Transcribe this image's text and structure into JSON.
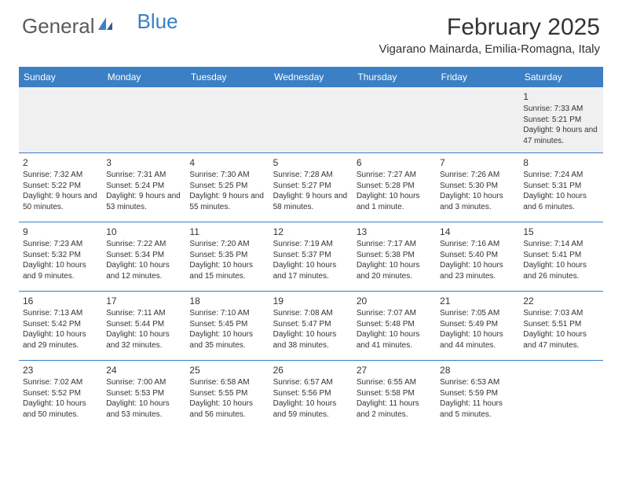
{
  "brand": {
    "part1": "General",
    "part2": "Blue"
  },
  "title": "February 2025",
  "location": "Vigarano Mainarda, Emilia-Romagna, Italy",
  "colors": {
    "header_bg": "#3b7fc4",
    "header_text": "#ffffff",
    "divider": "#3b7fc4",
    "first_row_bg": "#f0f0f0",
    "text": "#333333",
    "logo_gray": "#5a5a5a",
    "logo_blue": "#3b7fc4"
  },
  "day_headers": [
    "Sunday",
    "Monday",
    "Tuesday",
    "Wednesday",
    "Thursday",
    "Friday",
    "Saturday"
  ],
  "weeks": [
    [
      null,
      null,
      null,
      null,
      null,
      null,
      {
        "n": "1",
        "sr": "Sunrise: 7:33 AM",
        "ss": "Sunset: 5:21 PM",
        "dl": "Daylight: 9 hours and 47 minutes."
      }
    ],
    [
      {
        "n": "2",
        "sr": "Sunrise: 7:32 AM",
        "ss": "Sunset: 5:22 PM",
        "dl": "Daylight: 9 hours and 50 minutes."
      },
      {
        "n": "3",
        "sr": "Sunrise: 7:31 AM",
        "ss": "Sunset: 5:24 PM",
        "dl": "Daylight: 9 hours and 53 minutes."
      },
      {
        "n": "4",
        "sr": "Sunrise: 7:30 AM",
        "ss": "Sunset: 5:25 PM",
        "dl": "Daylight: 9 hours and 55 minutes."
      },
      {
        "n": "5",
        "sr": "Sunrise: 7:28 AM",
        "ss": "Sunset: 5:27 PM",
        "dl": "Daylight: 9 hours and 58 minutes."
      },
      {
        "n": "6",
        "sr": "Sunrise: 7:27 AM",
        "ss": "Sunset: 5:28 PM",
        "dl": "Daylight: 10 hours and 1 minute."
      },
      {
        "n": "7",
        "sr": "Sunrise: 7:26 AM",
        "ss": "Sunset: 5:30 PM",
        "dl": "Daylight: 10 hours and 3 minutes."
      },
      {
        "n": "8",
        "sr": "Sunrise: 7:24 AM",
        "ss": "Sunset: 5:31 PM",
        "dl": "Daylight: 10 hours and 6 minutes."
      }
    ],
    [
      {
        "n": "9",
        "sr": "Sunrise: 7:23 AM",
        "ss": "Sunset: 5:32 PM",
        "dl": "Daylight: 10 hours and 9 minutes."
      },
      {
        "n": "10",
        "sr": "Sunrise: 7:22 AM",
        "ss": "Sunset: 5:34 PM",
        "dl": "Daylight: 10 hours and 12 minutes."
      },
      {
        "n": "11",
        "sr": "Sunrise: 7:20 AM",
        "ss": "Sunset: 5:35 PM",
        "dl": "Daylight: 10 hours and 15 minutes."
      },
      {
        "n": "12",
        "sr": "Sunrise: 7:19 AM",
        "ss": "Sunset: 5:37 PM",
        "dl": "Daylight: 10 hours and 17 minutes."
      },
      {
        "n": "13",
        "sr": "Sunrise: 7:17 AM",
        "ss": "Sunset: 5:38 PM",
        "dl": "Daylight: 10 hours and 20 minutes."
      },
      {
        "n": "14",
        "sr": "Sunrise: 7:16 AM",
        "ss": "Sunset: 5:40 PM",
        "dl": "Daylight: 10 hours and 23 minutes."
      },
      {
        "n": "15",
        "sr": "Sunrise: 7:14 AM",
        "ss": "Sunset: 5:41 PM",
        "dl": "Daylight: 10 hours and 26 minutes."
      }
    ],
    [
      {
        "n": "16",
        "sr": "Sunrise: 7:13 AM",
        "ss": "Sunset: 5:42 PM",
        "dl": "Daylight: 10 hours and 29 minutes."
      },
      {
        "n": "17",
        "sr": "Sunrise: 7:11 AM",
        "ss": "Sunset: 5:44 PM",
        "dl": "Daylight: 10 hours and 32 minutes."
      },
      {
        "n": "18",
        "sr": "Sunrise: 7:10 AM",
        "ss": "Sunset: 5:45 PM",
        "dl": "Daylight: 10 hours and 35 minutes."
      },
      {
        "n": "19",
        "sr": "Sunrise: 7:08 AM",
        "ss": "Sunset: 5:47 PM",
        "dl": "Daylight: 10 hours and 38 minutes."
      },
      {
        "n": "20",
        "sr": "Sunrise: 7:07 AM",
        "ss": "Sunset: 5:48 PM",
        "dl": "Daylight: 10 hours and 41 minutes."
      },
      {
        "n": "21",
        "sr": "Sunrise: 7:05 AM",
        "ss": "Sunset: 5:49 PM",
        "dl": "Daylight: 10 hours and 44 minutes."
      },
      {
        "n": "22",
        "sr": "Sunrise: 7:03 AM",
        "ss": "Sunset: 5:51 PM",
        "dl": "Daylight: 10 hours and 47 minutes."
      }
    ],
    [
      {
        "n": "23",
        "sr": "Sunrise: 7:02 AM",
        "ss": "Sunset: 5:52 PM",
        "dl": "Daylight: 10 hours and 50 minutes."
      },
      {
        "n": "24",
        "sr": "Sunrise: 7:00 AM",
        "ss": "Sunset: 5:53 PM",
        "dl": "Daylight: 10 hours and 53 minutes."
      },
      {
        "n": "25",
        "sr": "Sunrise: 6:58 AM",
        "ss": "Sunset: 5:55 PM",
        "dl": "Daylight: 10 hours and 56 minutes."
      },
      {
        "n": "26",
        "sr": "Sunrise: 6:57 AM",
        "ss": "Sunset: 5:56 PM",
        "dl": "Daylight: 10 hours and 59 minutes."
      },
      {
        "n": "27",
        "sr": "Sunrise: 6:55 AM",
        "ss": "Sunset: 5:58 PM",
        "dl": "Daylight: 11 hours and 2 minutes."
      },
      {
        "n": "28",
        "sr": "Sunrise: 6:53 AM",
        "ss": "Sunset: 5:59 PM",
        "dl": "Daylight: 11 hours and 5 minutes."
      },
      null
    ]
  ]
}
